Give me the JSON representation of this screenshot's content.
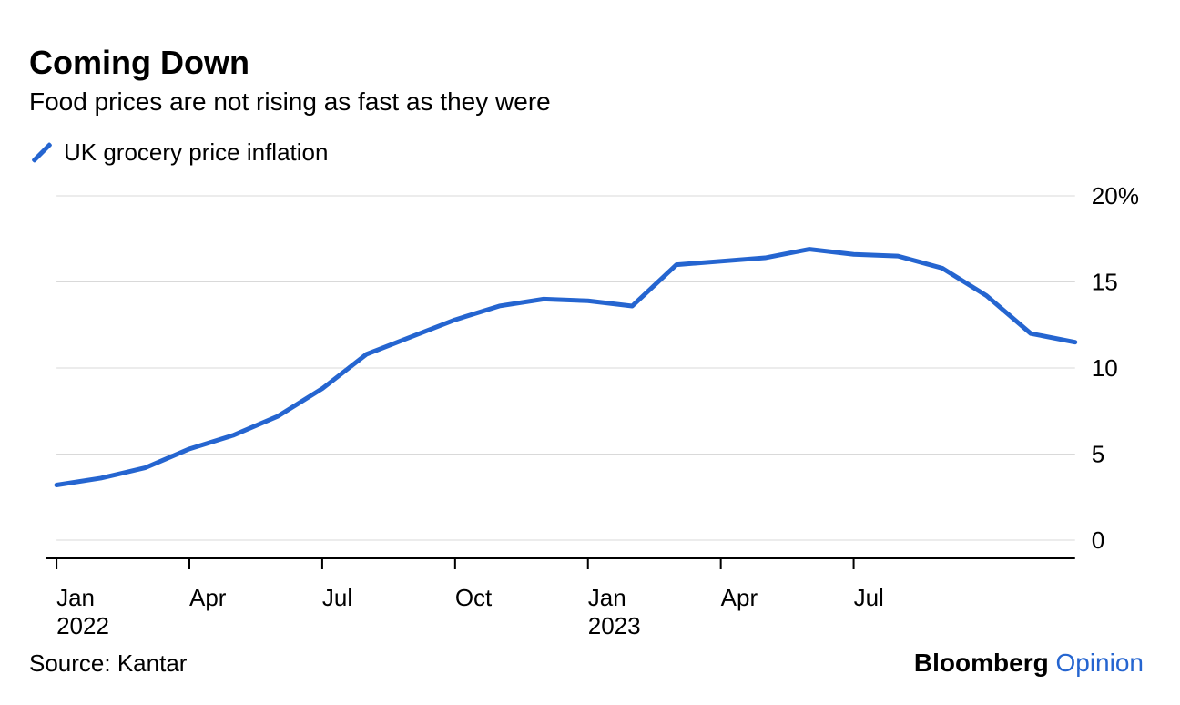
{
  "title": "Coming Down",
  "subtitle": "Food prices are not rising as fast as they were",
  "legend": {
    "label": "UK grocery price inflation",
    "color": "#2565d0"
  },
  "chart": {
    "type": "line",
    "line_color": "#2565d0",
    "line_width": 5,
    "background_color": "#ffffff",
    "grid_color": "#d9d9d9",
    "axis_color": "#000000",
    "ylim": [
      0,
      20
    ],
    "ytick_step": 5,
    "y_ticks": [
      {
        "value": 0,
        "label": "0"
      },
      {
        "value": 5,
        "label": "5"
      },
      {
        "value": 10,
        "label": "10"
      },
      {
        "value": 15,
        "label": "15"
      },
      {
        "value": 20,
        "label": "20%"
      }
    ],
    "x_ticks": [
      {
        "index": 0,
        "label_top": "Jan",
        "label_bottom": "2022"
      },
      {
        "index": 3,
        "label_top": "Apr",
        "label_bottom": ""
      },
      {
        "index": 6,
        "label_top": "Jul",
        "label_bottom": ""
      },
      {
        "index": 9,
        "label_top": "Oct",
        "label_bottom": ""
      },
      {
        "index": 12,
        "label_top": "Jan",
        "label_bottom": "2023"
      },
      {
        "index": 15,
        "label_top": "Apr",
        "label_bottom": ""
      },
      {
        "index": 18,
        "label_top": "Jul",
        "label_bottom": ""
      }
    ],
    "series": {
      "name": "UK grocery price inflation",
      "values": [
        3.2,
        3.6,
        4.2,
        5.3,
        6.1,
        7.2,
        8.8,
        10.8,
        11.8,
        12.8,
        13.6,
        14.0,
        13.9,
        13.6,
        16.0,
        16.2,
        16.4,
        16.9,
        16.6,
        16.5,
        15.8,
        14.2,
        12.0,
        11.5
      ]
    },
    "title_fontsize": 36,
    "label_fontsize": 26
  },
  "source": "Source: Kantar",
  "brand": {
    "main": "Bloomberg",
    "sub": "Opinion"
  }
}
